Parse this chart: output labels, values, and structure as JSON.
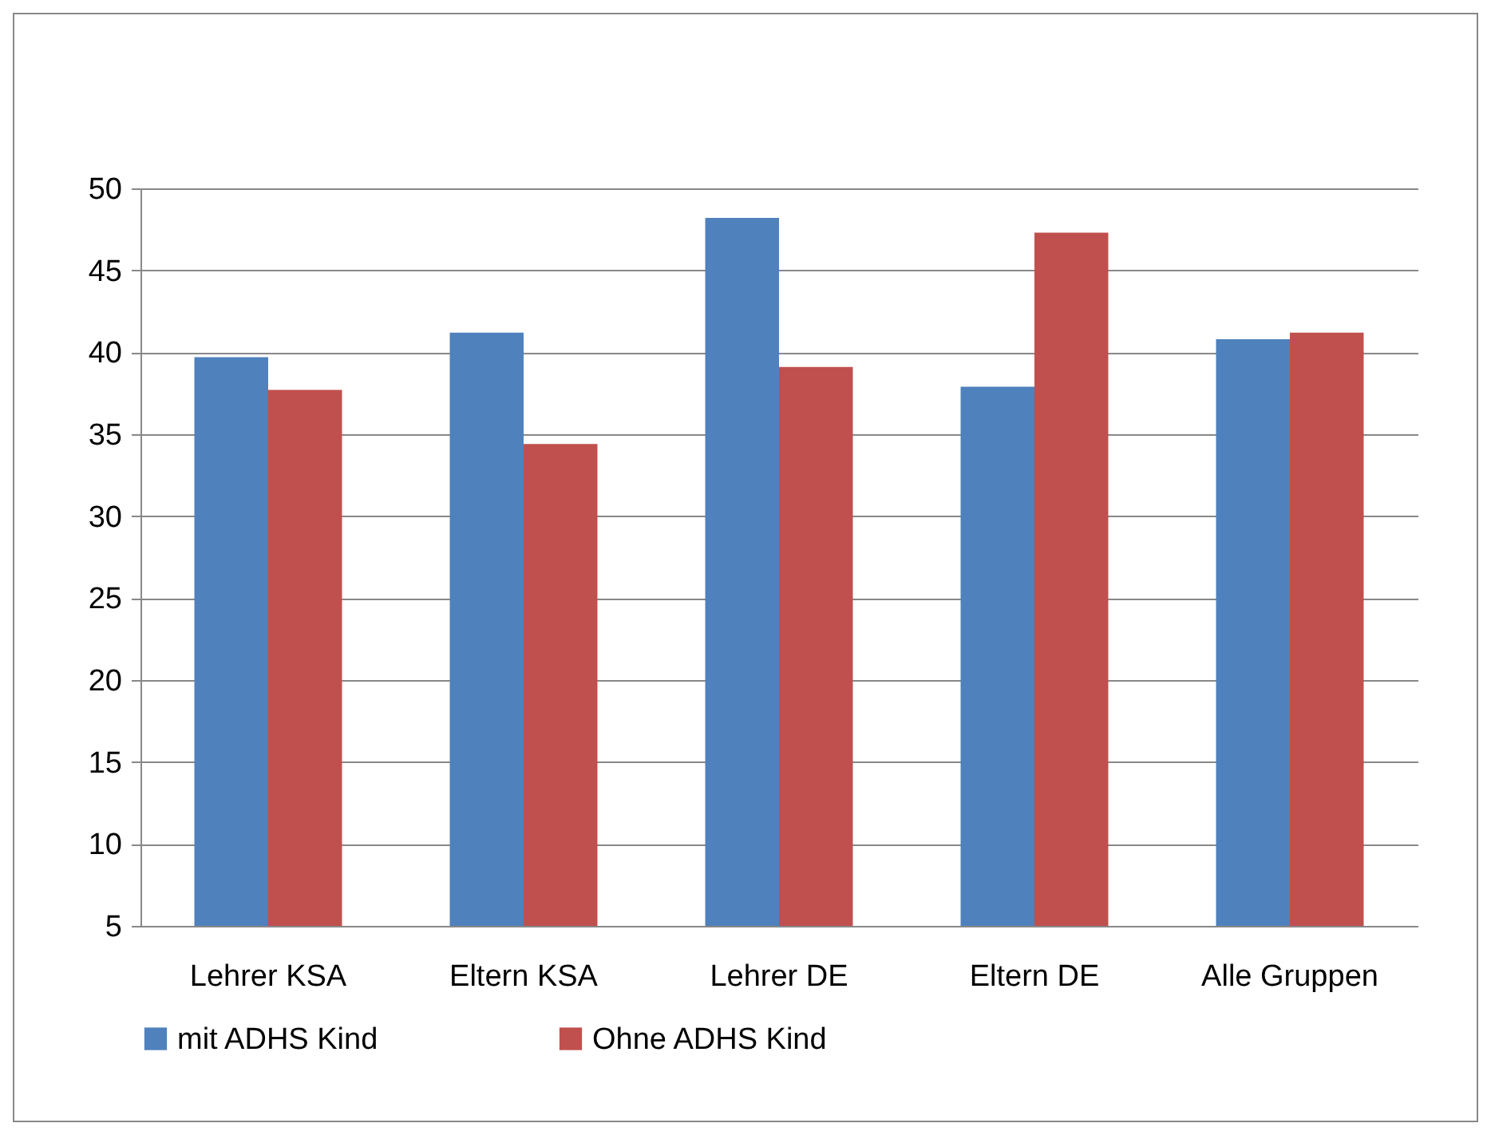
{
  "chart_data": {
    "type": "bar",
    "categories": [
      "Lehrer KSA",
      "Eltern KSA",
      "Lehrer DE",
      "Eltern DE",
      "Alle Gruppen"
    ],
    "series": [
      {
        "name": "mit ADHS Kind",
        "color": "#4f81bd",
        "values": [
          39.7,
          41.2,
          48.2,
          37.9,
          40.8
        ]
      },
      {
        "name": "Ohne ADHS Kind",
        "color": "#c0504d",
        "values": [
          37.7,
          34.4,
          39.1,
          47.3,
          41.2
        ]
      }
    ],
    "ylim": [
      5,
      50
    ],
    "yticks": [
      5,
      10,
      15,
      20,
      25,
      30,
      35,
      40,
      45,
      50
    ],
    "grid": "y",
    "legend": "bottom"
  }
}
